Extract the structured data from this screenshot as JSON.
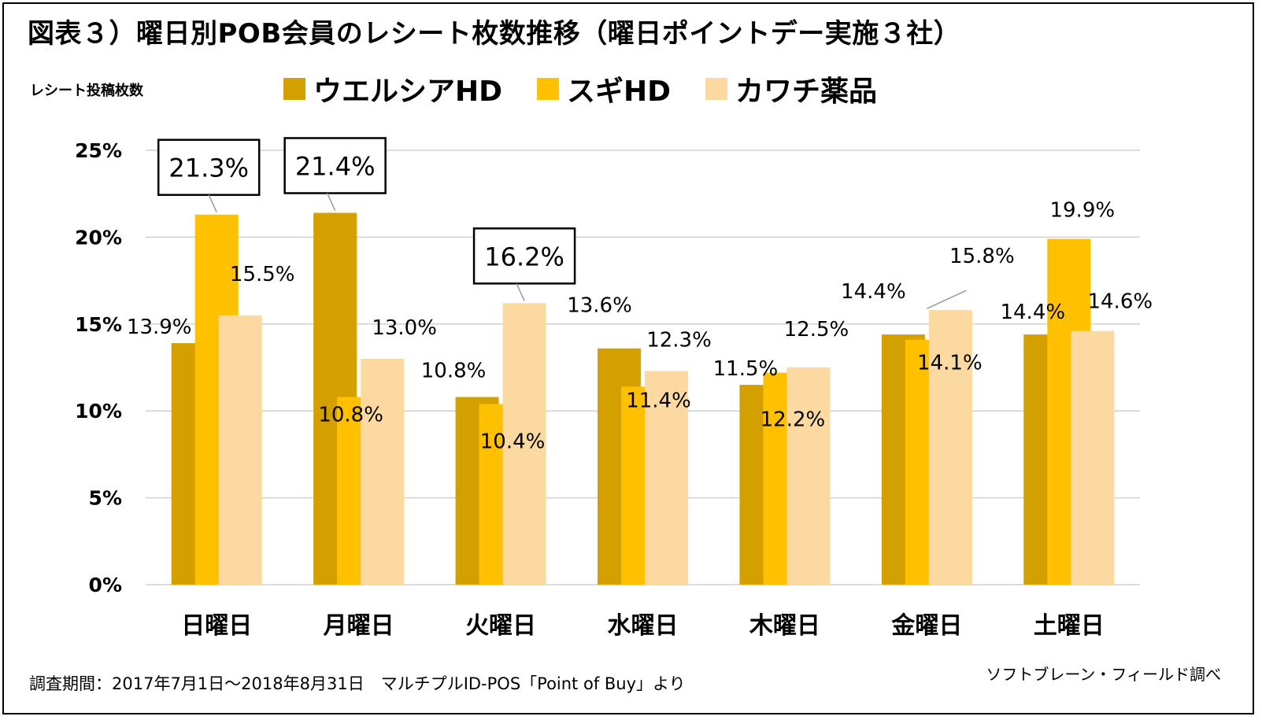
{
  "title": "図表３）曜日別POB会員のレシート枚数推移（曜日ポイントデー実施３社）",
  "colors": {
    "s0": "#d4a000",
    "s1": "#ffc000",
    "s2": "#fcd9a0"
  },
  "chart_data": {
    "type": "bar",
    "title": "図表３）曜日別POB会員のレシート枚数推移（曜日ポイントデー実施３社）",
    "ylabel": "レシート投稿枚数",
    "xlabel": "",
    "ylim": [
      0,
      25
    ],
    "yticks": [
      0,
      5,
      10,
      15,
      20,
      25
    ],
    "ytick_labels": [
      "0%",
      "5%",
      "10%",
      "15%",
      "20%",
      "25%"
    ],
    "grid": true,
    "legend": "top",
    "categories": [
      "日曜日",
      "月曜日",
      "火曜日",
      "水曜日",
      "木曜日",
      "金曜日",
      "土曜日"
    ],
    "series": [
      {
        "name": "ウエルシアHD",
        "values": [
          13.9,
          21.4,
          10.8,
          13.6,
          11.5,
          14.4,
          14.4
        ],
        "labels": [
          "13.9%",
          "21.4%",
          "10.8%",
          "13.6%",
          "11.5%",
          "14.4%",
          "14.4%"
        ]
      },
      {
        "name": "スギHD",
        "values": [
          21.3,
          10.8,
          10.4,
          11.4,
          12.2,
          14.1,
          19.9
        ],
        "labels": [
          "21.3%",
          "10.8%",
          "10.4%",
          "11.4%",
          "12.2%",
          "14.1%",
          "19.9%"
        ]
      },
      {
        "name": "カワチ薬品",
        "values": [
          15.5,
          13.0,
          16.2,
          12.3,
          12.5,
          15.8,
          14.6
        ],
        "labels": [
          "15.5%",
          "13.0%",
          "16.2%",
          "12.3%",
          "12.5%",
          "15.8%",
          "14.6%"
        ]
      }
    ],
    "highlighted": [
      {
        "series": 1,
        "category": 0
      },
      {
        "series": 0,
        "category": 1
      },
      {
        "series": 2,
        "category": 2
      }
    ]
  },
  "source_note": "調査期間：2017年7月1日～2018年8月31日　マルチプルID-POS「Point of Buy」より",
  "credit": "ソフトブレーン・フィールド調べ"
}
